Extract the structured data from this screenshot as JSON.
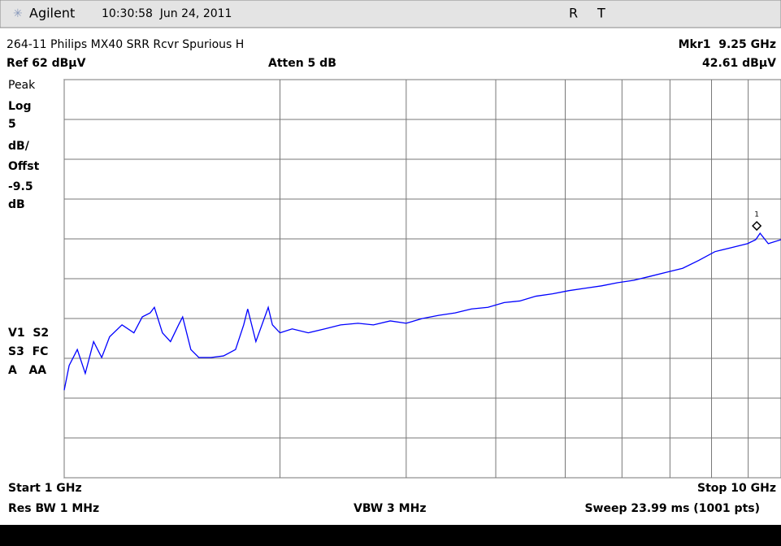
{
  "header": {
    "brand": "Agilent",
    "datetime": "10:30:58  Jun 24, 2011",
    "flag_r": "R",
    "flag_t": "T"
  },
  "status": {
    "title": "264-11 Philips MX40 SRR Rcvr Spurious H",
    "marker": "Mkr1  9.25 GHz",
    "ref": "Ref 62 dBµV",
    "atten": "Atten 5 dB",
    "marker_level": "42.61 dBµV"
  },
  "panel": [
    "Peak",
    "Log",
    "5",
    "dB/",
    "Offst",
    "-9.5",
    "dB"
  ],
  "modes": [
    "V1  S2",
    "S3  FC",
    "A   AA"
  ],
  "footer": {
    "start": "Start 1 GHz",
    "stop": "Stop 10 GHz",
    "rbw": "Res BW 1 MHz",
    "vbw": "VBW 3 MHz",
    "sweep": "Sweep 23.99 ms (1001 pts)"
  },
  "chart_data": {
    "type": "line",
    "xscale": "log",
    "grid": true,
    "xlim": [
      1,
      10
    ],
    "xticks": [
      1,
      2,
      3,
      4,
      5,
      6,
      7,
      8,
      9,
      10
    ],
    "ylim": [
      12,
      62
    ],
    "yticks": [
      12,
      17,
      22,
      27,
      32,
      37,
      42,
      47,
      52,
      57,
      62
    ],
    "x": [
      1.0,
      1.016,
      1.043,
      1.07,
      1.099,
      1.128,
      1.157,
      1.204,
      1.251,
      1.285,
      1.318,
      1.336,
      1.371,
      1.407,
      1.444,
      1.463,
      1.502,
      1.541,
      1.603,
      1.668,
      1.734,
      1.78,
      1.803,
      1.851,
      1.926,
      1.952,
      2.0,
      2.08,
      2.19,
      2.31,
      2.43,
      2.57,
      2.7,
      2.85,
      3.0,
      3.16,
      3.33,
      3.51,
      3.7,
      3.9,
      4.11,
      4.32,
      4.55,
      4.8,
      5.06,
      5.33,
      5.62,
      5.92,
      6.23,
      6.57,
      6.92,
      7.29,
      7.68,
      8.09,
      8.53,
      8.98,
      9.22,
      9.35,
      9.6,
      10.0
    ],
    "series": [
      {
        "color": "#0000ff",
        "values": [
          23.0,
          26.1,
          28.1,
          25.1,
          29.1,
          27.1,
          29.7,
          31.2,
          30.2,
          32.2,
          32.7,
          33.4,
          30.2,
          29.1,
          31.2,
          32.2,
          28.1,
          27.1,
          27.1,
          27.3,
          28.1,
          31.2,
          33.2,
          29.1,
          33.4,
          31.2,
          30.2,
          30.7,
          30.2,
          30.7,
          31.2,
          31.4,
          31.2,
          31.7,
          31.4,
          32.0,
          32.4,
          32.7,
          33.2,
          33.4,
          34.0,
          34.2,
          34.8,
          35.1,
          35.5,
          35.8,
          36.1,
          36.5,
          36.8,
          37.3,
          37.8,
          38.3,
          39.3,
          40.4,
          40.9,
          41.4,
          41.9,
          42.7,
          41.4,
          41.9
        ]
      }
    ],
    "marker": {
      "label": "1",
      "x": 9.25,
      "y": 42.61
    }
  }
}
